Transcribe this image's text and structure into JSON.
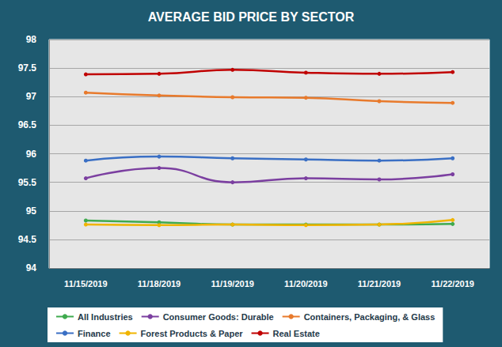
{
  "chart_data": {
    "type": "line",
    "title": "AVERAGE BID PRICE BY SECTOR",
    "categories": [
      "11/15/2019",
      "11/18/2019",
      "11/19/2019",
      "11/20/2019",
      "11/21/2019",
      "11/22/2019"
    ],
    "series": [
      {
        "name": "All Industries",
        "color": "#3FAA4E",
        "values": [
          94.83,
          94.8,
          94.76,
          94.76,
          94.76,
          94.77
        ]
      },
      {
        "name": "Consumer Goods: Durable",
        "color": "#7B3FA0",
        "values": [
          95.57,
          95.75,
          95.5,
          95.57,
          95.55,
          95.64
        ]
      },
      {
        "name": "Containers, Packaging, & Glass",
        "color": "#E87A2C",
        "values": [
          97.07,
          97.02,
          96.99,
          96.98,
          96.92,
          96.89
        ]
      },
      {
        "name": "Finance",
        "color": "#3A6FC4",
        "values": [
          95.88,
          95.95,
          95.92,
          95.9,
          95.88,
          95.92
        ]
      },
      {
        "name": "Forest Products & Paper",
        "color": "#F0B400",
        "values": [
          94.76,
          94.75,
          94.76,
          94.75,
          94.76,
          94.84
        ]
      },
      {
        "name": "Real Estate",
        "color": "#C00000",
        "values": [
          97.39,
          97.4,
          97.47,
          97.42,
          97.4,
          97.43
        ]
      }
    ],
    "ylim": [
      94,
      98
    ],
    "yticks": [
      94,
      94.5,
      95,
      95.5,
      96,
      96.5,
      97,
      97.5,
      98
    ],
    "grid": true,
    "legend": "bottom",
    "marker": "circle",
    "line_style": "smooth"
  }
}
